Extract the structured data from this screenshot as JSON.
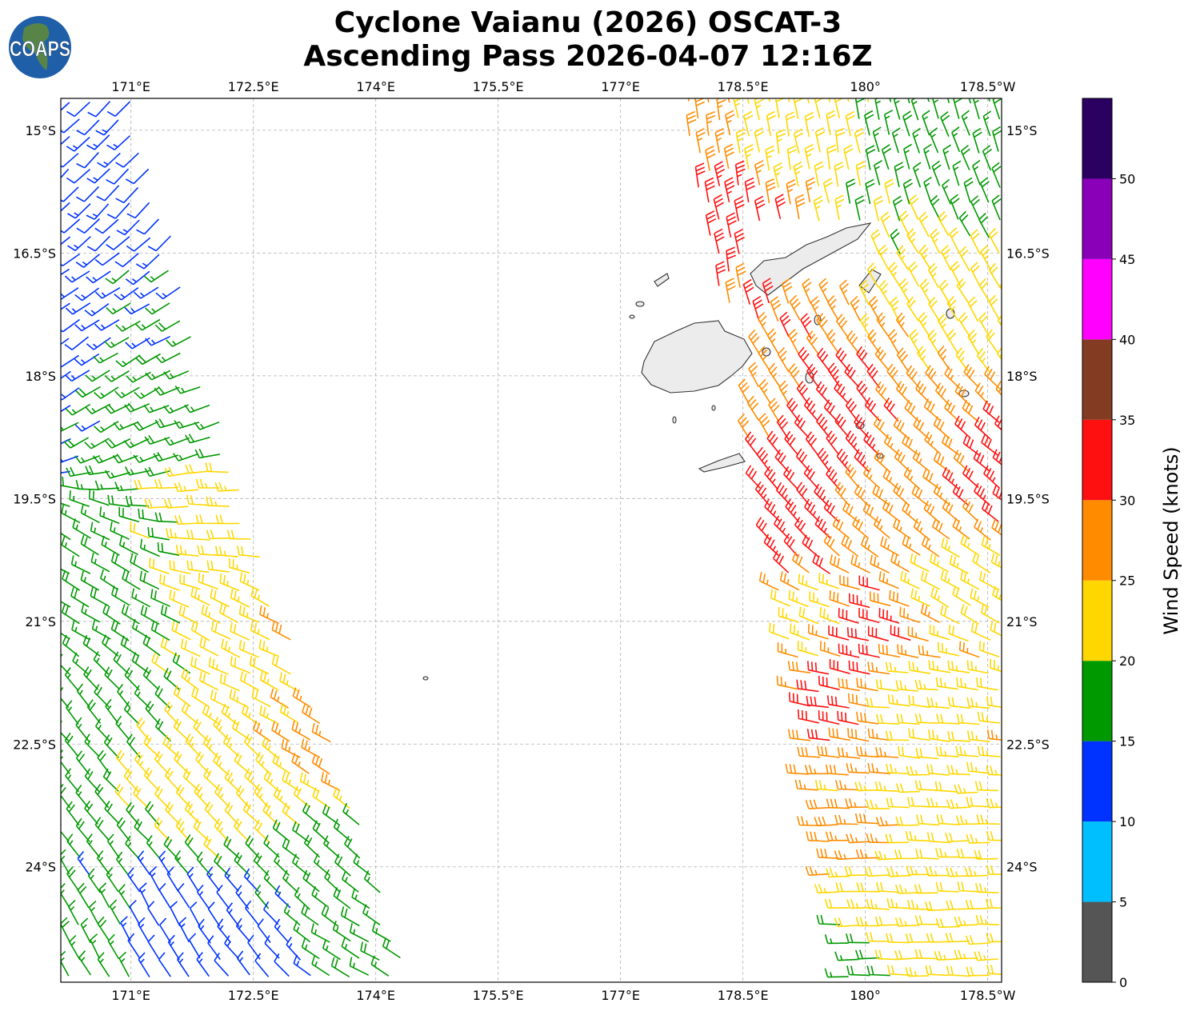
{
  "title": {
    "line1": "Cyclone Vaianu (2026) OSCAT-3",
    "line2": "Ascending Pass 2026-04-07 12:16Z"
  },
  "logo": {
    "text": "COAPS"
  },
  "chart_data": {
    "type": "map-wind-barbs",
    "lon_range": [
      170.14,
      181.67
    ],
    "lat_range_south": [
      14.61,
      25.41
    ],
    "x_ticks": [
      {
        "lon": 171,
        "label": "171°E"
      },
      {
        "lon": 172.5,
        "label": "172.5°E"
      },
      {
        "lon": 174,
        "label": "174°E"
      },
      {
        "lon": 175.5,
        "label": "175.5°E"
      },
      {
        "lon": 177,
        "label": "177°E"
      },
      {
        "lon": 178.5,
        "label": "178.5°E"
      },
      {
        "lon": 180,
        "label": "180°"
      },
      {
        "lon": 181.5,
        "label": "178.5°W"
      }
    ],
    "y_ticks": [
      {
        "lat": 15,
        "label": "15°S"
      },
      {
        "lat": 16.5,
        "label": "16.5°S"
      },
      {
        "lat": 18,
        "label": "18°S"
      },
      {
        "lat": 19.5,
        "label": "19.5°S"
      },
      {
        "lat": 21,
        "label": "21°S"
      },
      {
        "lat": 22.5,
        "label": "22.5°S"
      },
      {
        "lat": 24,
        "label": "24°S"
      }
    ],
    "colorbar": {
      "label": "Wind Speed (knots)",
      "bounds": [
        0,
        5,
        10,
        15,
        20,
        25,
        30,
        35,
        40,
        45,
        50,
        55
      ],
      "tick_labels": [
        "0",
        "5",
        "10",
        "15",
        "20",
        "25",
        "30",
        "35",
        "40",
        "45",
        "50"
      ],
      "colors": [
        "#555555",
        "#00bfff",
        "#0033ff",
        "#009900",
        "#ffd700",
        "#ff8c00",
        "#ff1010",
        "#833c22",
        "#ff00ff",
        "#8a00b8",
        "#2a0060"
      ]
    },
    "swaths": {
      "left_swath_east_edge": [
        [
          171.0,
          14.61
        ],
        [
          171.5,
          16.35
        ],
        [
          171.85,
          17.82
        ],
        [
          172.33,
          19.27
        ],
        [
          172.73,
          20.64
        ],
        [
          173.5,
          22.6
        ],
        [
          174.0,
          24.07
        ],
        [
          174.44,
          25.41
        ]
      ],
      "right_swath_west_edge": [
        [
          177.77,
          14.61
        ],
        [
          178.07,
          16.63
        ],
        [
          178.46,
          18.0
        ],
        [
          178.66,
          19.27
        ],
        [
          178.95,
          20.74
        ],
        [
          179.2,
          22.2
        ],
        [
          179.54,
          24.16
        ],
        [
          179.78,
          25.41
        ]
      ]
    },
    "wind_samples": [
      {
        "lon": 170.3,
        "lat": 15.0,
        "kt": 12,
        "dir": 225
      },
      {
        "lon": 170.9,
        "lat": 15.5,
        "kt": 12,
        "dir": 225
      },
      {
        "lon": 170.3,
        "lat": 17.5,
        "kt": 12,
        "dir": 235
      },
      {
        "lon": 170.9,
        "lat": 18.0,
        "kt": 17,
        "dir": 240
      },
      {
        "lon": 171.8,
        "lat": 18.5,
        "kt": 17,
        "dir": 250
      },
      {
        "lon": 170.5,
        "lat": 20.5,
        "kt": 17,
        "dir": 300
      },
      {
        "lon": 172.3,
        "lat": 19.5,
        "kt": 22,
        "dir": 270
      },
      {
        "lon": 172.7,
        "lat": 21.5,
        "kt": 22,
        "dir": 295
      },
      {
        "lon": 173.1,
        "lat": 21.3,
        "kt": 27,
        "dir": 300
      },
      {
        "lon": 173.6,
        "lat": 22.6,
        "kt": 27,
        "dir": 300
      },
      {
        "lon": 170.6,
        "lat": 22.5,
        "kt": 17,
        "dir": 320
      },
      {
        "lon": 171.6,
        "lat": 23.0,
        "kt": 22,
        "dir": 315
      },
      {
        "lon": 172.2,
        "lat": 23.3,
        "kt": 22,
        "dir": 315
      },
      {
        "lon": 173.5,
        "lat": 24.0,
        "kt": 17,
        "dir": 310
      },
      {
        "lon": 171.5,
        "lat": 24.8,
        "kt": 12,
        "dir": 330
      },
      {
        "lon": 172.5,
        "lat": 25.1,
        "kt": 12,
        "dir": 320
      },
      {
        "lon": 170.4,
        "lat": 25.0,
        "kt": 17,
        "dir": 330
      },
      {
        "lon": 173.8,
        "lat": 25.2,
        "kt": 17,
        "dir": 300
      },
      {
        "lon": 178.0,
        "lat": 15.0,
        "kt": 27,
        "dir": 350
      },
      {
        "lon": 178.3,
        "lat": 15.8,
        "kt": 32,
        "dir": 350
      },
      {
        "lon": 178.4,
        "lat": 16.3,
        "kt": 32,
        "dir": 350
      },
      {
        "lon": 178.8,
        "lat": 15.2,
        "kt": 22,
        "dir": 350
      },
      {
        "lon": 179.8,
        "lat": 15.2,
        "kt": 22,
        "dir": 350
      },
      {
        "lon": 180.2,
        "lat": 15.2,
        "kt": 17,
        "dir": 345
      },
      {
        "lon": 181.4,
        "lat": 15.5,
        "kt": 17,
        "dir": 340
      },
      {
        "lon": 181.0,
        "lat": 16.8,
        "kt": 22,
        "dir": 330
      },
      {
        "lon": 178.8,
        "lat": 18.5,
        "kt": 27,
        "dir": 330
      },
      {
        "lon": 179.0,
        "lat": 19.3,
        "kt": 32,
        "dir": 320
      },
      {
        "lon": 179.2,
        "lat": 20.0,
        "kt": 32,
        "dir": 315
      },
      {
        "lon": 179.6,
        "lat": 18.8,
        "kt": 32,
        "dir": 320
      },
      {
        "lon": 180.8,
        "lat": 19.5,
        "kt": 27,
        "dir": 310
      },
      {
        "lon": 181.4,
        "lat": 19.5,
        "kt": 32,
        "dir": 310
      },
      {
        "lon": 181.3,
        "lat": 20.5,
        "kt": 22,
        "dir": 300
      },
      {
        "lon": 179.4,
        "lat": 21.0,
        "kt": 22,
        "dir": 290
      },
      {
        "lon": 179.1,
        "lat": 22.0,
        "kt": 27,
        "dir": 280
      },
      {
        "lon": 179.6,
        "lat": 22.0,
        "kt": 32,
        "dir": 280
      },
      {
        "lon": 180.0,
        "lat": 21.1,
        "kt": 32,
        "dir": 285
      },
      {
        "lon": 180.7,
        "lat": 22.0,
        "kt": 22,
        "dir": 275
      },
      {
        "lon": 179.1,
        "lat": 23.5,
        "kt": 27,
        "dir": 270
      },
      {
        "lon": 180.0,
        "lat": 23.5,
        "kt": 27,
        "dir": 270
      },
      {
        "lon": 180.9,
        "lat": 23.5,
        "kt": 22,
        "dir": 270
      },
      {
        "lon": 180.2,
        "lat": 24.5,
        "kt": 22,
        "dir": 270
      },
      {
        "lon": 179.9,
        "lat": 25.2,
        "kt": 17,
        "dir": 270
      },
      {
        "lon": 181.2,
        "lat": 25.0,
        "kt": 22,
        "dir": 270
      }
    ]
  }
}
